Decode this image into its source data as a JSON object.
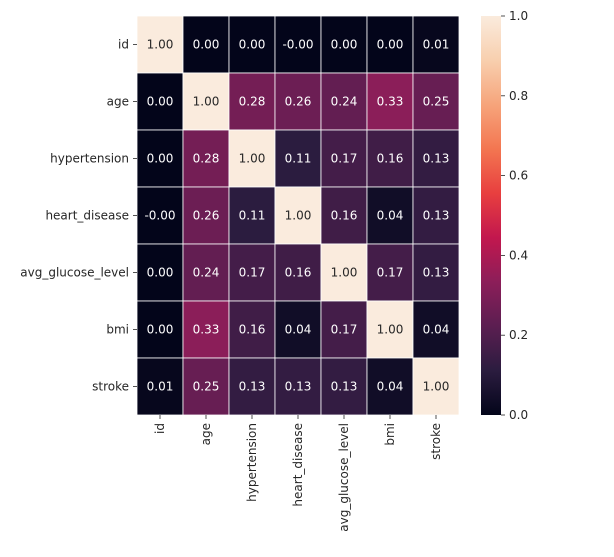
{
  "chart_data": {
    "type": "heatmap",
    "title": "",
    "xlabel": "",
    "ylabel": "",
    "rows": [
      "id",
      "age",
      "hypertension",
      "heart_disease",
      "avg_glucose_level",
      "bmi",
      "stroke"
    ],
    "columns": [
      "id",
      "age",
      "hypertension",
      "heart_disease",
      "avg_glucose_level",
      "bmi",
      "stroke"
    ],
    "values": [
      [
        1.0,
        0.0,
        0.0,
        -0.0,
        0.0,
        0.0,
        0.01
      ],
      [
        0.0,
        1.0,
        0.28,
        0.26,
        0.24,
        0.33,
        0.25
      ],
      [
        0.0,
        0.28,
        1.0,
        0.11,
        0.17,
        0.16,
        0.13
      ],
      [
        -0.0,
        0.26,
        0.11,
        1.0,
        0.16,
        0.04,
        0.13
      ],
      [
        0.0,
        0.24,
        0.17,
        0.16,
        1.0,
        0.17,
        0.13
      ],
      [
        0.0,
        0.33,
        0.16,
        0.04,
        0.17,
        1.0,
        0.04
      ],
      [
        0.01,
        0.25,
        0.13,
        0.13,
        0.13,
        0.04,
        1.0
      ]
    ],
    "cell_labels": [
      [
        "1.00",
        "0.00",
        "0.00",
        "-0.00",
        "0.00",
        "0.00",
        "0.01"
      ],
      [
        "0.00",
        "1.00",
        "0.28",
        "0.26",
        "0.24",
        "0.33",
        "0.25"
      ],
      [
        "0.00",
        "0.28",
        "1.00",
        "0.11",
        "0.17",
        "0.16",
        "0.13"
      ],
      [
        "-0.00",
        "0.26",
        "0.11",
        "1.00",
        "0.16",
        "0.04",
        "0.13"
      ],
      [
        "0.00",
        "0.24",
        "0.17",
        "0.16",
        "1.00",
        "0.17",
        "0.13"
      ],
      [
        "0.00",
        "0.33",
        "0.16",
        "0.04",
        "0.17",
        "1.00",
        "0.04"
      ],
      [
        "0.01",
        "0.25",
        "0.13",
        "0.13",
        "0.13",
        "0.04",
        "1.00"
      ]
    ],
    "colorbar": {
      "range": [
        0.0,
        1.0
      ],
      "ticks": [
        0.0,
        0.2,
        0.4,
        0.6,
        0.8,
        1.0
      ],
      "tick_labels": [
        "0.0",
        "0.2",
        "0.4",
        "0.6",
        "0.8",
        "1.0"
      ]
    },
    "colormap": "rocket",
    "colormap_stops": [
      "#03051a",
      "#2b1c3f",
      "#5b1e51",
      "#8c1e59",
      "#c2174e",
      "#e83f3f",
      "#f37651",
      "#f6a47b",
      "#f8cfae",
      "#faebdd"
    ],
    "grid": true,
    "annotations": true
  }
}
